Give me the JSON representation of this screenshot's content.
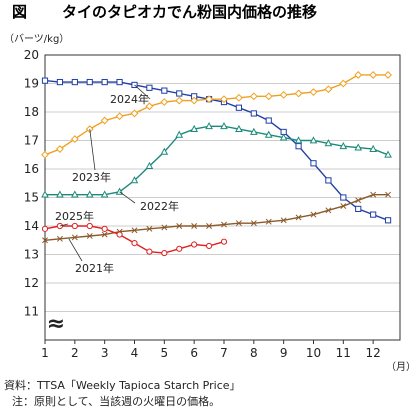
{
  "header": {
    "prefix": "図",
    "title": "タイのタピオカでん粉国内価格の推移"
  },
  "footer": {
    "source": "資料：TTSA「Weekly Tapioca Starch Price」",
    "note": "注：原則として、当該週の火曜日の価格。"
  },
  "chart_data": {
    "type": "line",
    "title": "タイのタピオカでん粉国内価格の推移",
    "ylabel": "（バーツ/kg）",
    "xlabel": "（月）",
    "ylim": [
      10,
      20
    ],
    "y_ticks": [
      10,
      11,
      12,
      13,
      14,
      15,
      16,
      17,
      18,
      19,
      20
    ],
    "y_tick_labels": [
      "",
      "11",
      "12",
      "13",
      "14",
      "15",
      "16",
      "17",
      "18",
      "19",
      "20"
    ],
    "xlim": [
      1,
      12.9
    ],
    "x_ticks": [
      1,
      2,
      3,
      4,
      5,
      6,
      7,
      8,
      9,
      10,
      11,
      12
    ],
    "axis_break_symbol": "≈",
    "grid": true,
    "legend": "inline labels",
    "series": [
      {
        "name": "2024年",
        "color": "#1f3fa8",
        "marker": "square",
        "x": [
          1.0,
          1.5,
          2.0,
          2.5,
          3.0,
          3.5,
          4.0,
          4.5,
          5.0,
          5.5,
          6.0,
          6.5,
          7.0,
          7.5,
          8.0,
          8.5,
          9.0,
          9.5,
          10.0,
          10.5,
          11.0,
          11.5,
          12.0,
          12.5
        ],
        "y": [
          19.1,
          19.05,
          19.05,
          19.05,
          19.05,
          19.05,
          18.95,
          18.85,
          18.75,
          18.65,
          18.55,
          18.45,
          18.35,
          18.15,
          17.95,
          17.7,
          17.3,
          16.8,
          16.2,
          15.6,
          15.0,
          14.6,
          14.4,
          14.2
        ]
      },
      {
        "name": "2023年",
        "color": "#f0a020",
        "marker": "diamond",
        "x": [
          1.0,
          1.5,
          2.0,
          2.5,
          3.0,
          3.5,
          4.0,
          4.5,
          5.0,
          5.5,
          6.0,
          6.5,
          7.0,
          7.5,
          8.0,
          8.5,
          9.0,
          9.5,
          10.0,
          10.5,
          11.0,
          11.5,
          12.0,
          12.5
        ],
        "y": [
          16.5,
          16.7,
          17.05,
          17.4,
          17.7,
          17.85,
          17.95,
          18.2,
          18.35,
          18.4,
          18.4,
          18.45,
          18.45,
          18.5,
          18.55,
          18.55,
          18.6,
          18.65,
          18.7,
          18.8,
          19.0,
          19.3,
          19.3,
          19.3
        ]
      },
      {
        "name": "2022年",
        "color": "#1a8a7a",
        "marker": "triangle",
        "x": [
          1.0,
          1.5,
          2.0,
          2.5,
          3.0,
          3.5,
          4.0,
          4.5,
          5.0,
          5.5,
          6.0,
          6.5,
          7.0,
          7.5,
          8.0,
          8.5,
          9.0,
          9.5,
          10.0,
          10.5,
          11.0,
          11.5,
          12.0,
          12.5
        ],
        "y": [
          15.1,
          15.1,
          15.1,
          15.1,
          15.1,
          15.2,
          15.6,
          16.1,
          16.6,
          17.2,
          17.4,
          17.5,
          17.5,
          17.4,
          17.3,
          17.2,
          17.1,
          17.0,
          17.0,
          16.9,
          16.8,
          16.75,
          16.7,
          16.5
        ]
      },
      {
        "name": "2021年",
        "color": "#8a5a2a",
        "marker": "cross",
        "x": [
          1.0,
          1.5,
          2.0,
          2.5,
          3.0,
          3.5,
          4.0,
          4.5,
          5.0,
          5.5,
          6.0,
          6.5,
          7.0,
          7.5,
          8.0,
          8.5,
          9.0,
          9.5,
          10.0,
          10.5,
          11.0,
          11.5,
          12.0,
          12.5
        ],
        "y": [
          13.5,
          13.55,
          13.6,
          13.65,
          13.7,
          13.8,
          13.85,
          13.9,
          13.95,
          14.0,
          14.0,
          14.0,
          14.05,
          14.1,
          14.1,
          14.15,
          14.2,
          14.3,
          14.4,
          14.55,
          14.7,
          14.9,
          15.1,
          15.1
        ]
      },
      {
        "name": "2025年",
        "color": "#e02020",
        "marker": "circle",
        "x": [
          1.0,
          1.5,
          2.0,
          2.5,
          3.0,
          3.5,
          4.0,
          4.5,
          5.0,
          5.5,
          6.0,
          6.5,
          7.0
        ],
        "y": [
          13.9,
          14.0,
          14.0,
          14.0,
          13.9,
          13.7,
          13.4,
          13.1,
          13.05,
          13.2,
          13.35,
          13.3,
          13.45
        ]
      }
    ],
    "annotations": [
      {
        "text": "2024年",
        "series": "2024年"
      },
      {
        "text": "2023年",
        "series": "2023年"
      },
      {
        "text": "2022年",
        "series": "2022年"
      },
      {
        "text": "2025年",
        "series": "2025年"
      },
      {
        "text": "2021年",
        "series": "2021年"
      }
    ]
  }
}
